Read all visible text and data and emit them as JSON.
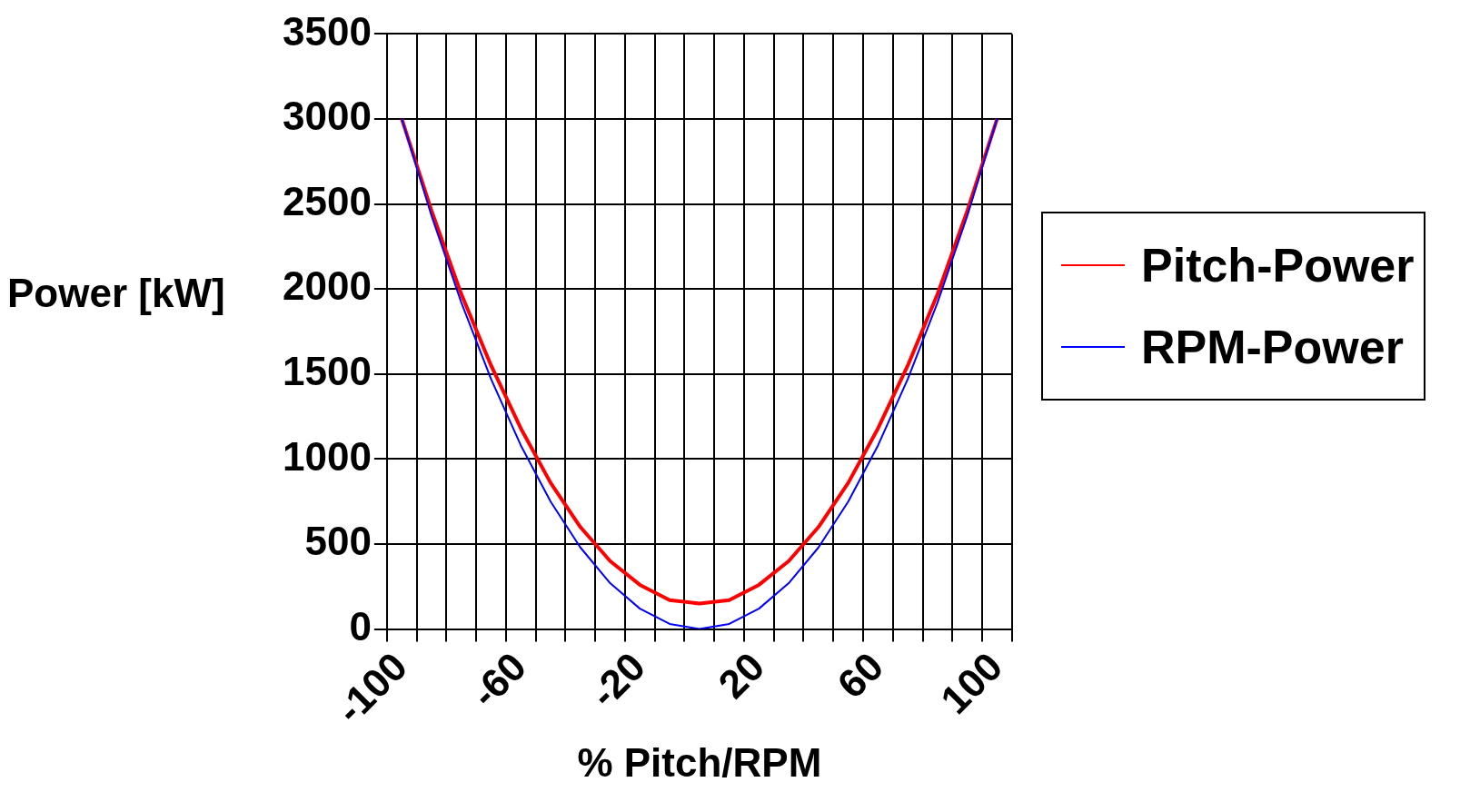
{
  "chart_data": {
    "type": "line",
    "xlabel": "% Pitch/RPM",
    "ylabel": "Power [kW]",
    "categories": [
      "-100",
      null,
      null,
      null,
      "-60",
      null,
      null,
      null,
      "-20",
      null,
      null,
      null,
      "20",
      null,
      null,
      null,
      "60",
      null,
      null,
      null,
      "100"
    ],
    "series": [
      {
        "name": "Pitch-Power",
        "color": "#ff0000",
        "values": [
          3000,
          2460,
          1970,
          1550,
          1180,
          860,
          600,
          400,
          260,
          170,
          150,
          170,
          260,
          400,
          600,
          860,
          1180,
          1550,
          1970,
          2460,
          3000
        ]
      },
      {
        "name": "RPM-Power",
        "color": "#0000ff",
        "values": [
          3000,
          2430,
          1920,
          1470,
          1080,
          750,
          480,
          270,
          120,
          30,
          0,
          30,
          120,
          270,
          480,
          750,
          1080,
          1470,
          1920,
          2430,
          3000
        ]
      }
    ],
    "ylim": [
      0,
      3500
    ],
    "yticks": [
      0,
      500,
      1000,
      1500,
      2000,
      2500,
      3000,
      3500
    ],
    "grid": true,
    "legend": "right",
    "marker": "none"
  }
}
